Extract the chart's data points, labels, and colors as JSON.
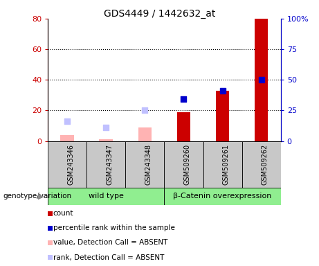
{
  "title": "GDS4449 / 1442632_at",
  "samples": [
    "GSM243346",
    "GSM243347",
    "GSM243348",
    "GSM509260",
    "GSM509261",
    "GSM509262"
  ],
  "count_values": [
    null,
    null,
    null,
    19,
    33,
    80
  ],
  "rank_values": [
    null,
    null,
    null,
    34,
    41,
    50
  ],
  "value_absent": [
    4,
    1,
    9,
    null,
    null,
    null
  ],
  "rank_absent": [
    16,
    11,
    25,
    null,
    null,
    null
  ],
  "ylim_left": [
    0,
    80
  ],
  "ylim_right": [
    0,
    100
  ],
  "yticks_left": [
    0,
    20,
    40,
    60,
    80
  ],
  "ytick_labels_left": [
    "0",
    "20",
    "40",
    "60",
    "80"
  ],
  "yticks_right": [
    0,
    25,
    50,
    75,
    100
  ],
  "ytick_labels_right": [
    "0",
    "25",
    "50",
    "75",
    "100%"
  ],
  "color_count": "#cc0000",
  "color_rank": "#0000cc",
  "color_value_absent": "#ffb3b3",
  "color_rank_absent": "#c0c0ff",
  "bar_width": 0.35,
  "marker_size": 40,
  "group1_label": "wild type",
  "group2_label": "β-Catenin overexpression",
  "group_color": "#90ee90",
  "group_label_prefix": "genotype/variation",
  "plot_bg": "#ffffff",
  "sample_bg": "#c8c8c8",
  "legend_items": [
    {
      "color": "#cc0000",
      "label": "count"
    },
    {
      "color": "#0000cc",
      "label": "percentile rank within the sample"
    },
    {
      "color": "#ffb3b3",
      "label": "value, Detection Call = ABSENT"
    },
    {
      "color": "#c0c0ff",
      "label": "rank, Detection Call = ABSENT"
    }
  ]
}
